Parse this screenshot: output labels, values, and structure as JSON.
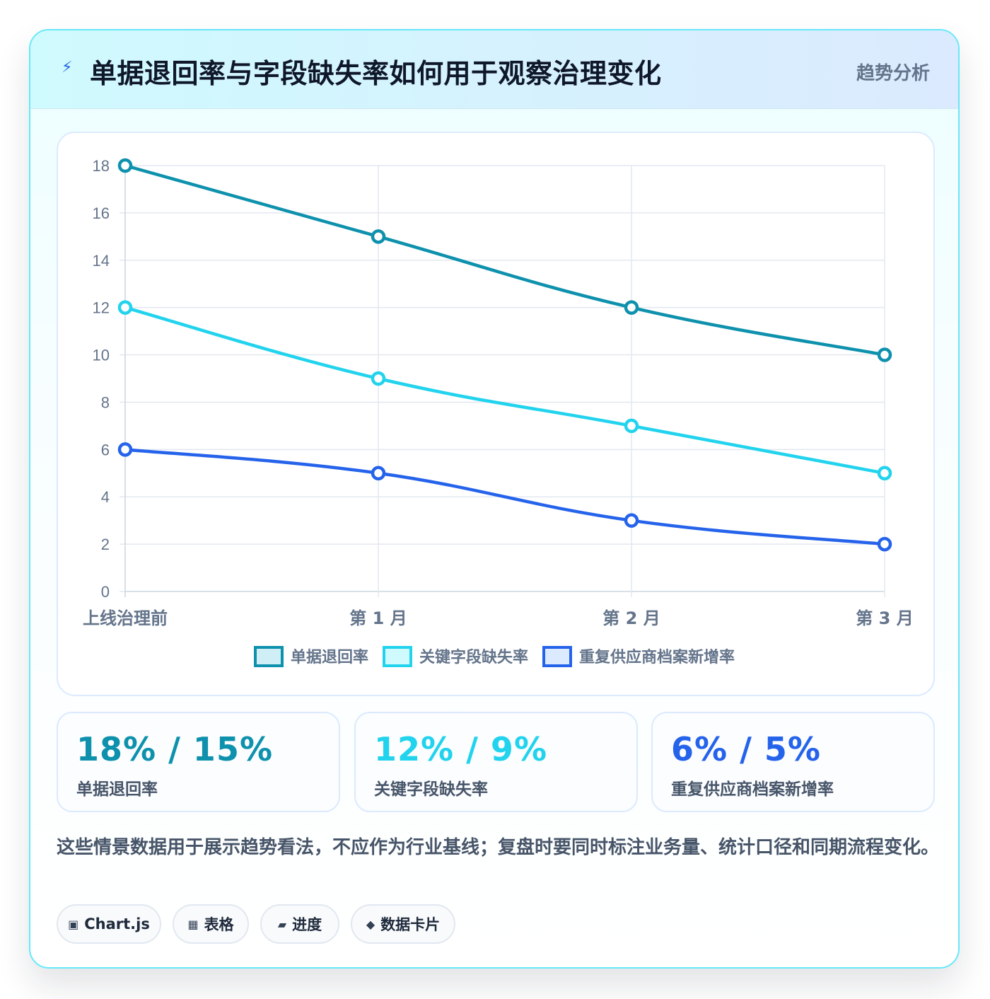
{
  "header": {
    "icon": "bolt-icon",
    "title": "单据退回率与字段缺失率如何用于观察治理变化",
    "tag": "趋势分析"
  },
  "chart_data": {
    "type": "line",
    "categories": [
      "上线治理前",
      "第 1 月",
      "第 2 月",
      "第 3 月"
    ],
    "series": [
      {
        "name": "单据退回率",
        "values": [
          18,
          15,
          12,
          10
        ],
        "color": "#0e91ad",
        "fill": "#cfeef5"
      },
      {
        "name": "关键字段缺失率",
        "values": [
          12,
          9,
          7,
          5
        ],
        "color": "#22d3ee",
        "fill": "#cffafe"
      },
      {
        "name": "重复供应商档案新增率",
        "values": [
          6,
          5,
          3,
          2
        ],
        "color": "#2563eb",
        "fill": "#dbeafe"
      }
    ],
    "ylim": [
      0,
      18
    ],
    "yticks": [
      0,
      2,
      4,
      6,
      8,
      10,
      12,
      14,
      16,
      18
    ],
    "grid": true,
    "legend": "bottom"
  },
  "stats": [
    {
      "value": "18% / 15%",
      "label": "单据退回率",
      "color": "#0e91ad"
    },
    {
      "value": "12% / 9%",
      "label": "关键字段缺失率",
      "color": "#22d3ee"
    },
    {
      "value": "6% / 5%",
      "label": "重复供应商档案新增率",
      "color": "#2563eb"
    }
  ],
  "note": "这些情景数据用于展示趋势看法，不应作为行业基线；复盘时要同时标注业务量、统计口径和同期流程变化。",
  "chips": [
    {
      "icon": "chart-icon",
      "glyph": "▣",
      "label": "Chart.js"
    },
    {
      "icon": "table-icon",
      "glyph": "▦",
      "label": "表格"
    },
    {
      "icon": "progress-icon",
      "glyph": "▰",
      "label": "进度"
    },
    {
      "icon": "diamond-icon",
      "glyph": "◆",
      "label": "数据卡片"
    }
  ]
}
